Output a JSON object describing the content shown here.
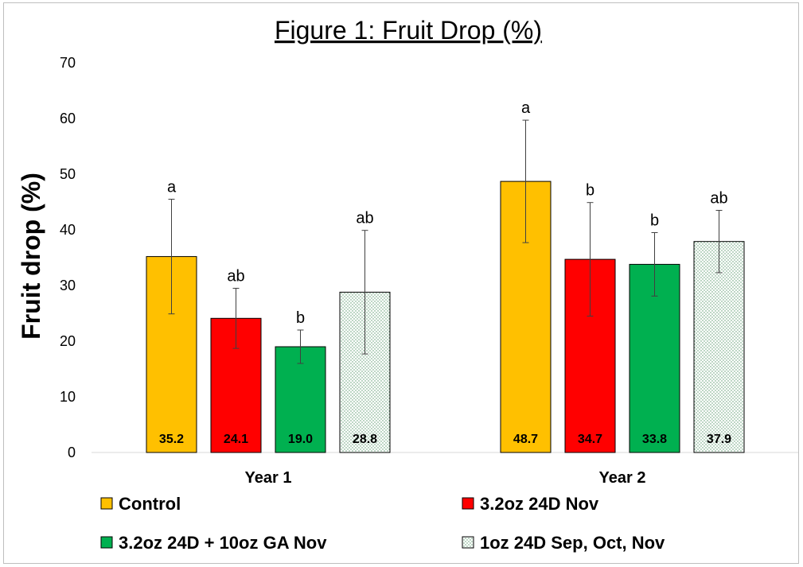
{
  "chart_data": {
    "type": "bar",
    "title": "Figure 1: Fruit Drop (%)",
    "xlabel": "",
    "ylabel": "Fruit drop (%)",
    "ylim": [
      0,
      70
    ],
    "yticks": [
      0,
      10,
      20,
      30,
      40,
      50,
      60,
      70
    ],
    "grid": false,
    "legend_position": "bottom",
    "categories": [
      "Year 1",
      "Year 2"
    ],
    "series": [
      {
        "name": "Control",
        "color": "#FFC000",
        "pattern": "solid",
        "values": [
          35.2,
          48.7
        ],
        "errors": [
          10.3,
          11.0
        ],
        "labels": [
          "35.2",
          "48.7"
        ],
        "significance": [
          "a",
          "a"
        ]
      },
      {
        "name": "3.2oz 24D Nov",
        "color": "#FF0000",
        "pattern": "solid",
        "values": [
          24.1,
          34.7
        ],
        "errors": [
          5.4,
          10.2
        ],
        "labels": [
          "24.1",
          "34.7"
        ],
        "significance": [
          "ab",
          "b"
        ]
      },
      {
        "name": "3.2oz 24D + 10oz GA Nov",
        "color": "#00B050",
        "pattern": "solid",
        "values": [
          19.0,
          33.8
        ],
        "errors": [
          3.0,
          5.7
        ],
        "labels": [
          "19.0",
          "33.8"
        ],
        "significance": [
          "b",
          "b"
        ]
      },
      {
        "name": "1oz 24D Sep, Oct, Nov",
        "color": "#E2F0D9",
        "pattern": "dots",
        "values": [
          28.8,
          37.9
        ],
        "errors": [
          11.1,
          5.6
        ],
        "labels": [
          "28.8",
          "37.9"
        ],
        "significance": [
          "ab",
          "ab"
        ]
      }
    ]
  }
}
